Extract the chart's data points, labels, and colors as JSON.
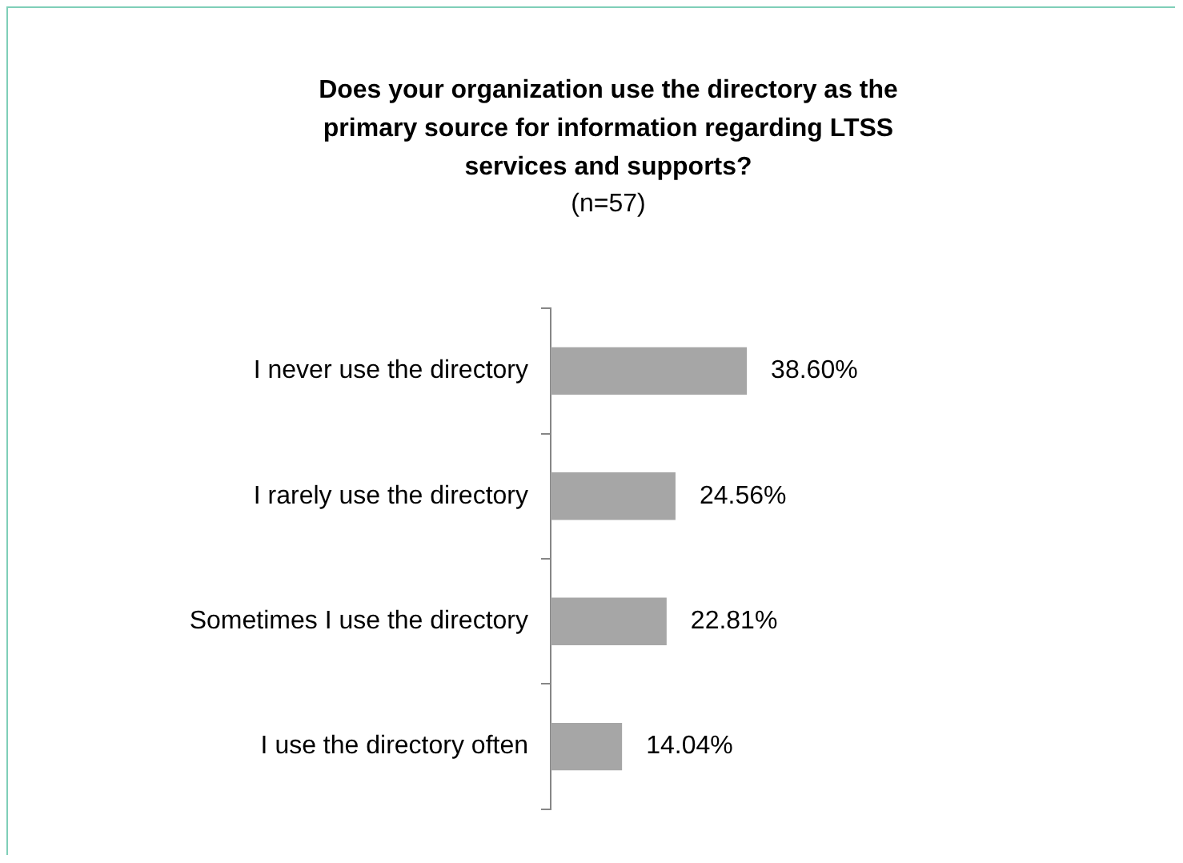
{
  "chart_data": {
    "type": "bar",
    "orientation": "horizontal",
    "tick_labels": "y",
    "title": "Does your organization use the directory  as the primary source for information regarding LTSS services and supports?",
    "subtitle": "(n=57)",
    "categories": [
      "I never use the directory",
      "I rarely use the directory",
      "Sometimes I use the directory",
      "I use the directory often"
    ],
    "values": [
      38.6,
      24.56,
      22.81,
      14.04
    ],
    "value_labels": [
      "38.60%",
      "24.56%",
      "22.81%",
      "14.04%"
    ],
    "color": "#a6a6a6",
    "legend": false
  }
}
